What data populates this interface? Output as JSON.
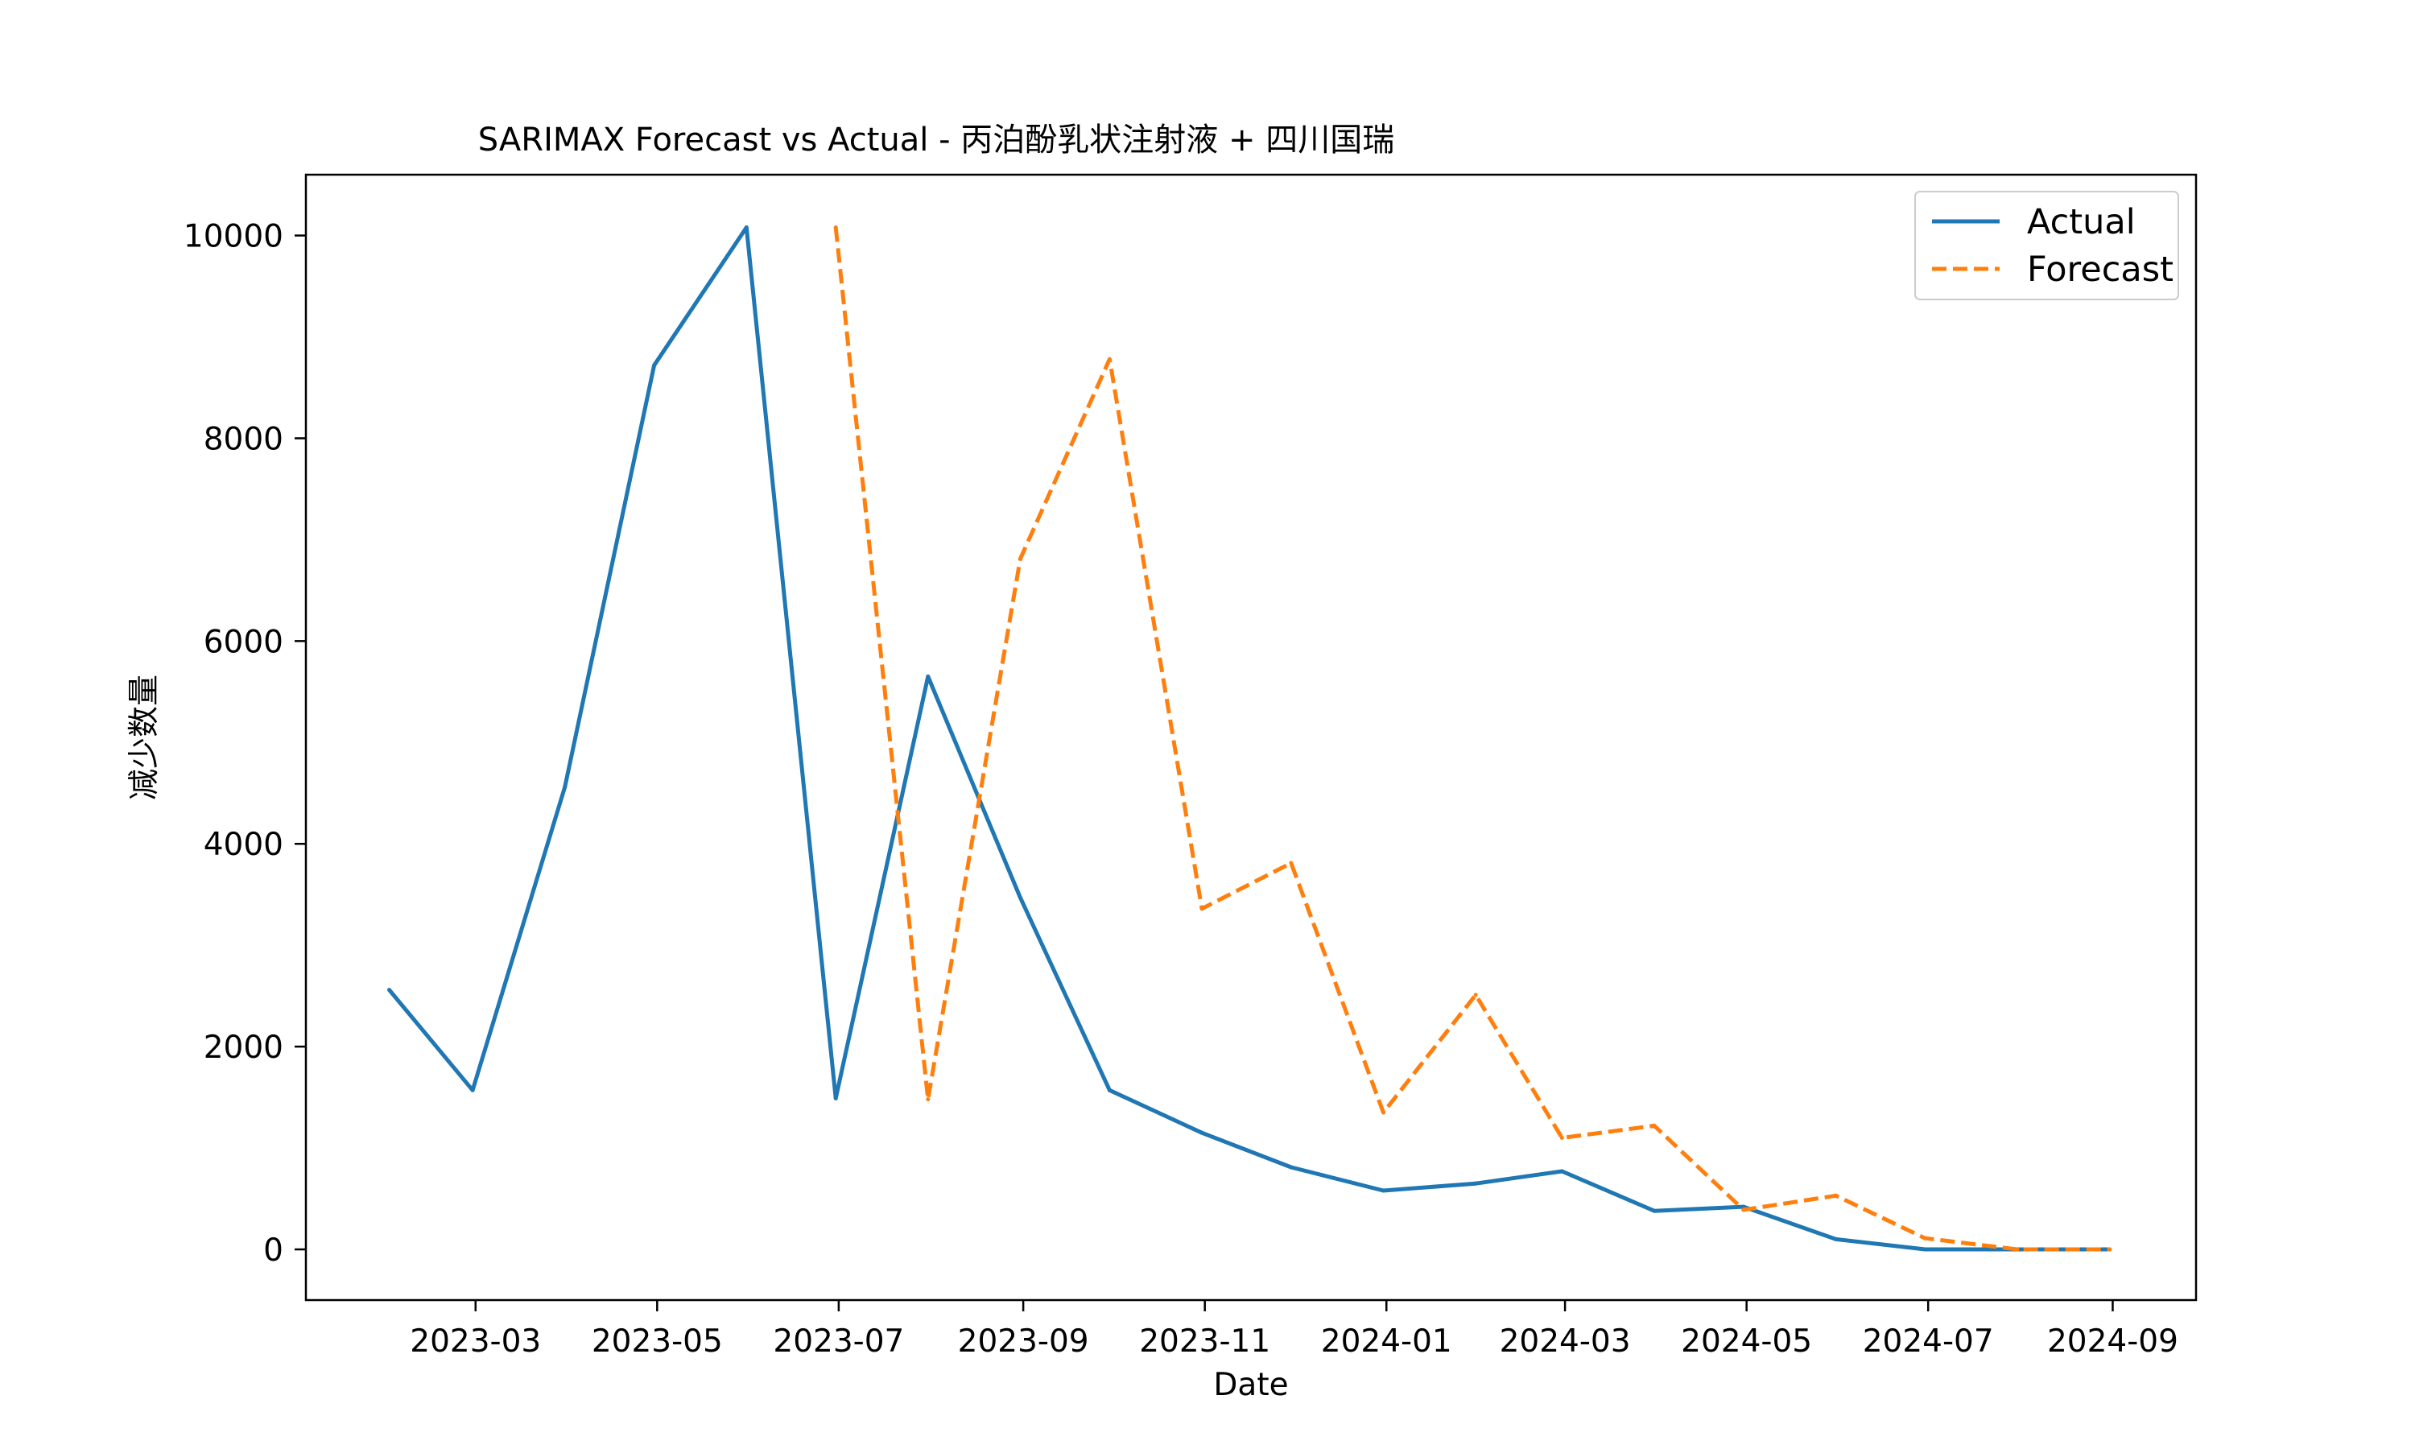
{
  "chart_data": {
    "type": "line",
    "title": "SARIMAX Forecast vs Actual - 丙泊酚乳状注射液 + 四川国瑞",
    "xlabel": "Date",
    "ylabel": "减少数量",
    "x_ticks": [
      "2023-03",
      "2023-05",
      "2023-07",
      "2023-09",
      "2023-11",
      "2024-01",
      "2024-03",
      "2024-05",
      "2024-07",
      "2024-09"
    ],
    "y_ticks": [
      "0",
      "2000",
      "4000",
      "6000",
      "8000",
      "10000"
    ],
    "xlim": [
      "2023-01-03",
      "2024-09-29"
    ],
    "ylim": [
      -500,
      10600
    ],
    "grid": false,
    "legend_position": "upper right",
    "series": [
      {
        "name": "Actual",
        "color": "#1f77b4",
        "line_style": "solid",
        "x": [
          "2023-01-31",
          "2023-02-28",
          "2023-03-31",
          "2023-04-30",
          "2023-05-31",
          "2023-06-30",
          "2023-07-31",
          "2023-08-31",
          "2023-09-30",
          "2023-10-31",
          "2023-11-30",
          "2023-12-31",
          "2024-01-31",
          "2024-02-29",
          "2024-03-31",
          "2024-04-30",
          "2024-05-31",
          "2024-06-30",
          "2024-07-31",
          "2024-08-31"
        ],
        "y": [
          2560,
          1570,
          4560,
          8720,
          10080,
          1490,
          5650,
          3470,
          1570,
          1150,
          810,
          580,
          650,
          770,
          380,
          420,
          100,
          0,
          0,
          0
        ]
      },
      {
        "name": "Forecast",
        "color": "#ff7f0e",
        "line_style": "dashed",
        "x": [
          "2023-06-30",
          "2023-07-31",
          "2023-08-31",
          "2023-09-30",
          "2023-10-31",
          "2023-11-30",
          "2023-12-31",
          "2024-01-31",
          "2024-02-29",
          "2024-03-31",
          "2024-04-30",
          "2024-05-31",
          "2024-06-30",
          "2024-07-31",
          "2024-08-31"
        ],
        "y": [
          10080,
          1480,
          6810,
          8780,
          3360,
          3810,
          1350,
          2510,
          1100,
          1220,
          390,
          530,
          110,
          0,
          0
        ]
      }
    ]
  }
}
